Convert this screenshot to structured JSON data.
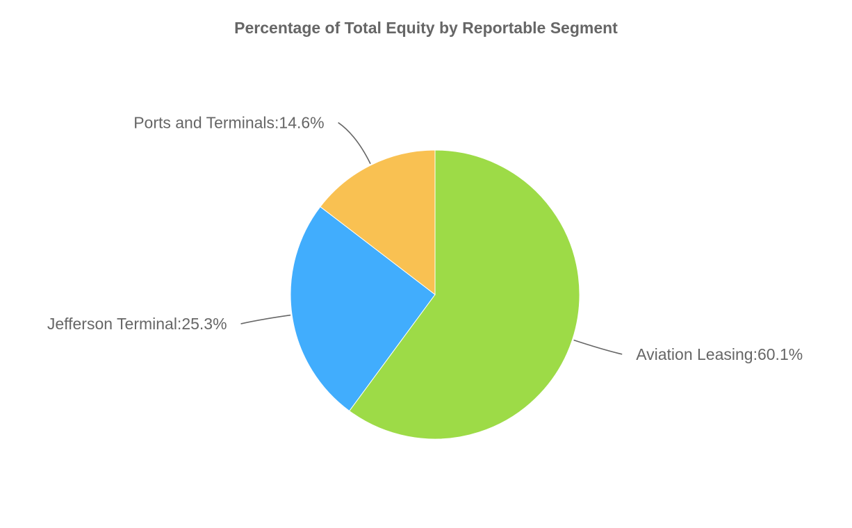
{
  "chart_data": {
    "type": "pie",
    "title": "Percentage of Total Equity by Reportable Segment",
    "slices": [
      {
        "name": "Aviation Leasing",
        "value": 60.1,
        "label": "Aviation Leasing:60.1%",
        "color": "#9ddb47"
      },
      {
        "name": "Jefferson Terminal",
        "value": 25.3,
        "label": "Jefferson Terminal:25.3%",
        "color": "#41adfd"
      },
      {
        "name": "Ports and Terminals",
        "value": 14.6,
        "label": "Ports and Terminals:14.6%",
        "color": "#f9c152"
      }
    ],
    "start_angle": "top",
    "direction": "clockwise",
    "legend": "none"
  }
}
